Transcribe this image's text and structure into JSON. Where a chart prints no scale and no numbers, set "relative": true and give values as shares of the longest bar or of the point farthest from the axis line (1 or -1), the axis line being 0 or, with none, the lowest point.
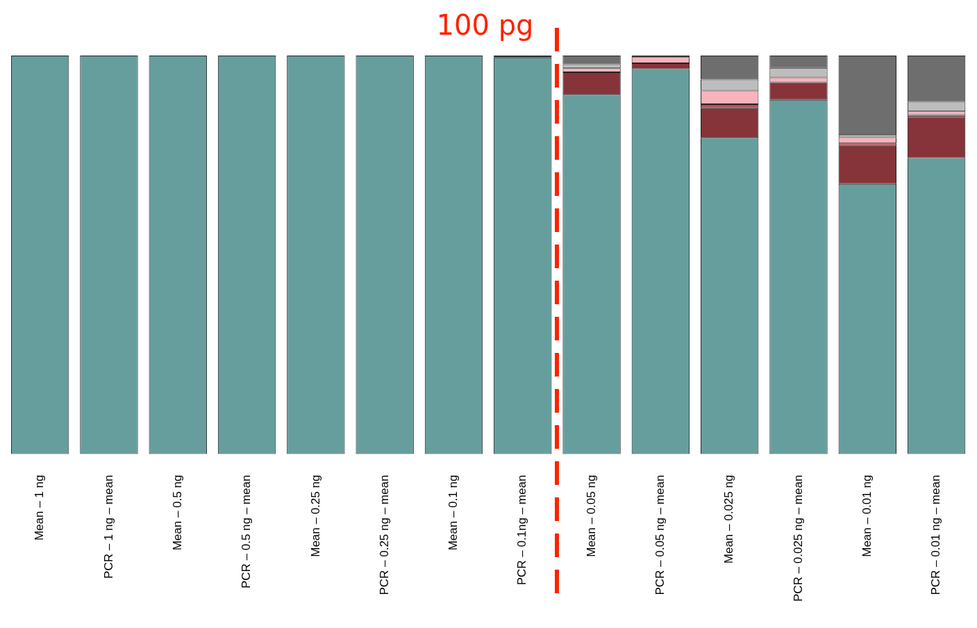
{
  "chart_data": {
    "type": "bar",
    "stacked": true,
    "relative": true,
    "grid": false,
    "legend": false,
    "categories": [
      "Mean – 1 ng",
      "PCR – 1 ng – mean",
      "Mean – 0.5 ng",
      "PCR – 0.5 ng – mean",
      "Mean – 0.25 ng",
      "PCR – 0.25 ng – mean",
      "Mean – 0.1 ng",
      "PCR – 0.1ng – mean",
      "Mean – 0.05 ng",
      "PCR – 0.05 ng – mean",
      "Mean – 0.025 ng",
      "PCR – 0.025 ng – mean",
      "Mean – 0.01 ng",
      "PCR – 0.01 ng – mean"
    ],
    "series": [
      {
        "color": "#669e9e",
        "values": [
          1,
          1,
          1,
          1,
          1,
          1,
          1,
          0.995,
          0.902,
          0.966,
          0.794,
          0.889,
          0.678,
          0.743
        ]
      },
      {
        "color": "#863339",
        "values": [
          0,
          0,
          0,
          0,
          0,
          0,
          0,
          0,
          0.056,
          0.015,
          0.074,
          0.044,
          0.096,
          0.103
        ]
      },
      {
        "color": "#b84c55",
        "values": [
          0,
          0,
          0,
          0,
          0,
          0,
          0,
          0,
          0,
          0,
          0.01,
          0,
          0.006,
          0.005
        ]
      },
      {
        "color": "#f8b3bd",
        "values": [
          0,
          0,
          0,
          0,
          0,
          0,
          0,
          0,
          0.01,
          0.015,
          0.034,
          0.012,
          0.015,
          0.009
        ]
      },
      {
        "color": "#bdbdbd",
        "values": [
          0,
          0,
          0,
          0,
          0,
          0,
          0,
          0,
          0.01,
          0,
          0.028,
          0.024,
          0.006,
          0.024
        ]
      },
      {
        "color": "#6e6e6e",
        "values": [
          0,
          0,
          0,
          0,
          0,
          0,
          0,
          0,
          0.022,
          0,
          0.06,
          0.031,
          0.199,
          0.116
        ]
      },
      {
        "color": "#000000",
        "values": [
          0,
          0,
          0,
          0,
          0,
          0,
          0,
          0.005,
          0,
          0.004,
          0,
          0,
          0,
          0
        ]
      }
    ],
    "annotations": [
      "100 pg"
    ]
  }
}
